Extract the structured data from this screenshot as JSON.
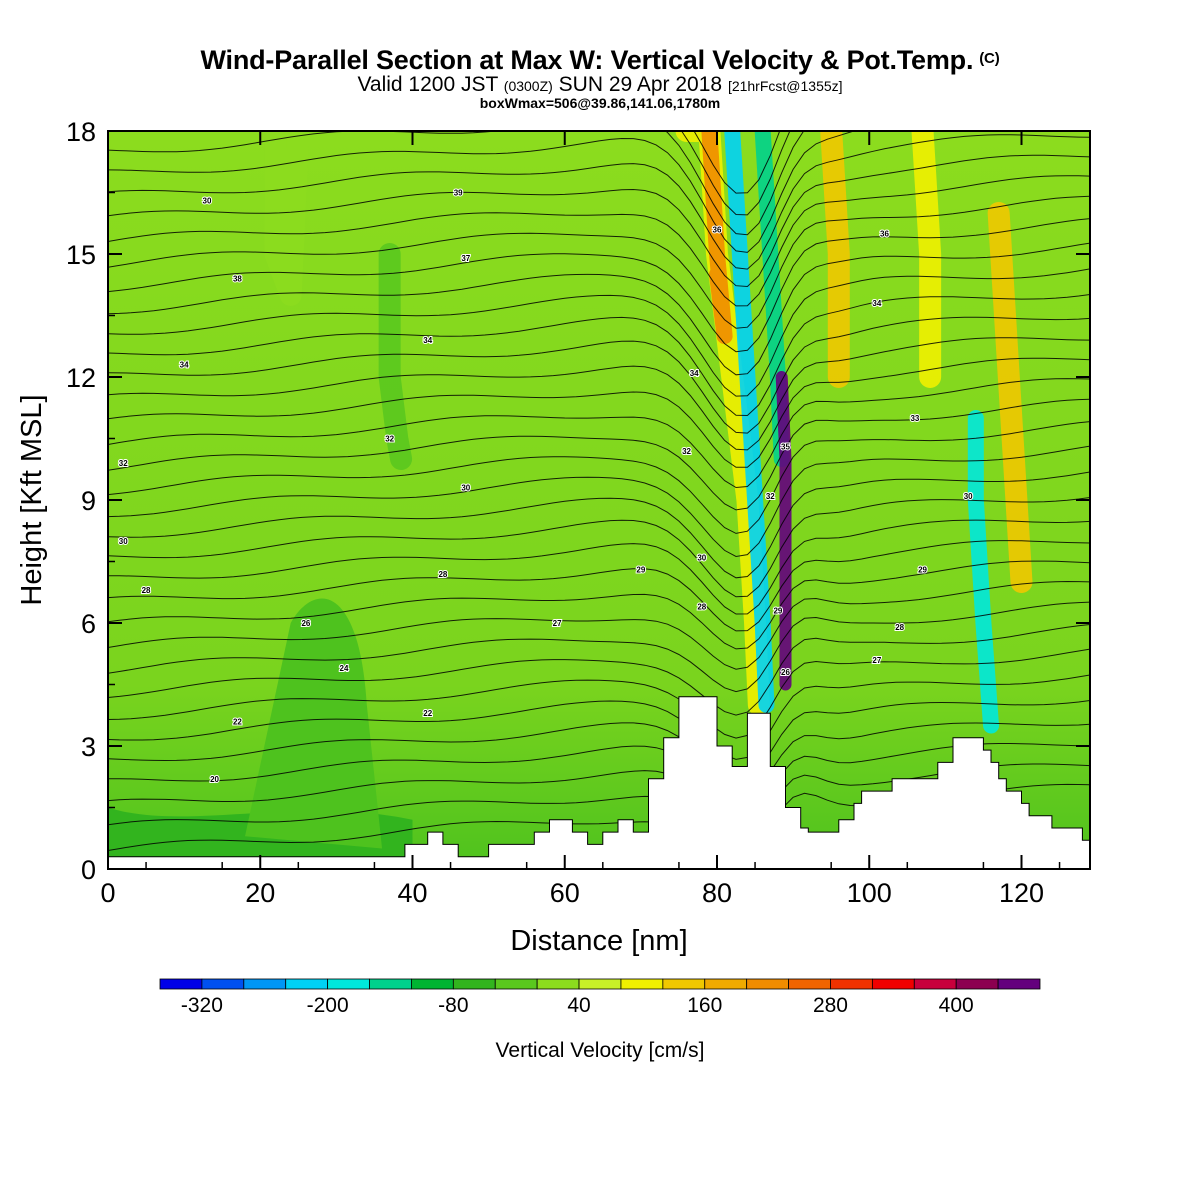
{
  "header": {
    "title": "Wind-Parallel Section at Max W: Vertical Velocity & Pot.Temp.",
    "copyright": "(C)",
    "valid_prefix": "Valid 1200 JST",
    "valid_utc": "(0300Z)",
    "valid_date": "SUN 29 Apr 2018",
    "forecast": "[21hrFcst@1355z]",
    "box_info": "boxWmax=506@39.86,141.06,1780m"
  },
  "chart_data": {
    "type": "heatmap",
    "xlabel": "Distance [nm]",
    "ylabel": "Height [Kft MSL]",
    "xlim": [
      0,
      129
    ],
    "ylim": [
      0,
      18
    ],
    "x_ticks": [
      0,
      20,
      40,
      60,
      80,
      100,
      120
    ],
    "y_ticks": [
      0,
      3,
      6,
      9,
      12,
      15,
      18
    ],
    "terrain_profile": [
      [
        0,
        0.3
      ],
      [
        39,
        0.3
      ],
      [
        39,
        0.6
      ],
      [
        42,
        0.6
      ],
      [
        42,
        0.9
      ],
      [
        44,
        0.9
      ],
      [
        44,
        0.6
      ],
      [
        46,
        0.6
      ],
      [
        46,
        0.3
      ],
      [
        50,
        0.3
      ],
      [
        50,
        0.6
      ],
      [
        56,
        0.6
      ],
      [
        56,
        0.9
      ],
      [
        58,
        0.9
      ],
      [
        58,
        1.2
      ],
      [
        61,
        1.2
      ],
      [
        61,
        0.9
      ],
      [
        63,
        0.9
      ],
      [
        63,
        0.6
      ],
      [
        65,
        0.6
      ],
      [
        65,
        0.9
      ],
      [
        67,
        0.9
      ],
      [
        67,
        1.2
      ],
      [
        69,
        1.2
      ],
      [
        69,
        0.9
      ],
      [
        71,
        0.9
      ],
      [
        71,
        2.2
      ],
      [
        73,
        2.2
      ],
      [
        73,
        3.2
      ],
      [
        75,
        3.2
      ],
      [
        75,
        4.2
      ],
      [
        80,
        4.2
      ],
      [
        80,
        3.0
      ],
      [
        82,
        3.0
      ],
      [
        82,
        2.5
      ],
      [
        84,
        2.5
      ],
      [
        84,
        3.8
      ],
      [
        87,
        3.8
      ],
      [
        87,
        2.5
      ],
      [
        89,
        2.5
      ],
      [
        89,
        1.5
      ],
      [
        91,
        1.5
      ],
      [
        91,
        1.0
      ],
      [
        92,
        1.0
      ],
      [
        92,
        0.9
      ],
      [
        96,
        0.9
      ],
      [
        96,
        1.2
      ],
      [
        98,
        1.2
      ],
      [
        98,
        1.6
      ],
      [
        99,
        1.6
      ],
      [
        99,
        1.9
      ],
      [
        103,
        1.9
      ],
      [
        103,
        2.2
      ],
      [
        109,
        2.2
      ],
      [
        109,
        2.6
      ],
      [
        111,
        2.6
      ],
      [
        111,
        3.2
      ],
      [
        115,
        3.2
      ],
      [
        115,
        2.9
      ],
      [
        116,
        2.9
      ],
      [
        116,
        2.6
      ],
      [
        117,
        2.6
      ],
      [
        117,
        2.2
      ],
      [
        118,
        2.2
      ],
      [
        118,
        1.9
      ],
      [
        120,
        1.9
      ],
      [
        120,
        1.6
      ],
      [
        121,
        1.6
      ],
      [
        121,
        1.3
      ],
      [
        124,
        1.3
      ],
      [
        124,
        1.0
      ],
      [
        128,
        1.0
      ],
      [
        128,
        0.7
      ],
      [
        129,
        0.7
      ]
    ],
    "velocity_ridges": [
      {
        "value": 20,
        "points": [
          [
            22,
            18
          ],
          [
            22,
            15
          ],
          [
            24,
            14
          ],
          [
            25,
            18
          ]
        ]
      },
      {
        "value": -40,
        "points": [
          [
            37,
            15
          ],
          [
            37,
            12
          ],
          [
            38,
            10.5
          ],
          [
            38.5,
            10
          ]
        ]
      },
      {
        "value": 80,
        "points": [
          [
            76,
            18
          ],
          [
            79,
            18
          ],
          [
            80,
            15
          ],
          [
            82,
            12
          ],
          [
            84,
            9
          ],
          [
            85,
            6
          ],
          [
            85.5,
            4
          ]
        ]
      },
      {
        "value": 200,
        "points": [
          [
            79,
            18
          ],
          [
            80,
            15
          ],
          [
            81,
            13
          ],
          [
            80,
            14.5
          ]
        ]
      },
      {
        "value": -240,
        "points": [
          [
            82,
            18
          ],
          [
            83,
            15
          ],
          [
            84,
            12
          ],
          [
            85,
            9
          ],
          [
            86,
            6
          ],
          [
            86.5,
            4
          ]
        ]
      },
      {
        "value": -160,
        "points": [
          [
            86,
            18
          ],
          [
            87,
            15
          ],
          [
            88,
            12
          ],
          [
            88.5,
            10
          ]
        ]
      },
      {
        "value": 480,
        "points": [
          [
            88.5,
            12
          ],
          [
            89,
            10
          ],
          [
            89,
            8
          ],
          [
            89,
            6
          ],
          [
            89,
            4.5
          ]
        ]
      },
      {
        "value": 120,
        "points": [
          [
            95,
            18
          ],
          [
            96,
            15
          ],
          [
            96,
            12
          ]
        ]
      },
      {
        "value": 80,
        "points": [
          [
            107,
            18
          ],
          [
            108,
            15
          ],
          [
            108,
            12
          ]
        ]
      },
      {
        "value": -200,
        "points": [
          [
            114,
            11
          ],
          [
            114,
            9
          ],
          [
            115,
            6
          ],
          [
            116,
            3.5
          ]
        ]
      },
      {
        "value": 120,
        "points": [
          [
            117,
            16
          ],
          [
            118,
            13
          ],
          [
            119,
            10
          ],
          [
            120,
            7
          ]
        ]
      }
    ],
    "isotherm_labels": [
      {
        "x": 13,
        "y": 16.3,
        "text": "30"
      },
      {
        "x": 17,
        "y": 14.4,
        "text": "38"
      },
      {
        "x": 10,
        "y": 12.3,
        "text": "34"
      },
      {
        "x": 2,
        "y": 9.9,
        "text": "32"
      },
      {
        "x": 2,
        "y": 8.0,
        "text": "30"
      },
      {
        "x": 5,
        "y": 6.8,
        "text": "28"
      },
      {
        "x": 26,
        "y": 6.0,
        "text": "26"
      },
      {
        "x": 31,
        "y": 4.9,
        "text": "24"
      },
      {
        "x": 17,
        "y": 3.6,
        "text": "22"
      },
      {
        "x": 14,
        "y": 2.2,
        "text": "20"
      },
      {
        "x": 46,
        "y": 16.5,
        "text": "39"
      },
      {
        "x": 47,
        "y": 14.9,
        "text": "37"
      },
      {
        "x": 42,
        "y": 12.9,
        "text": "34"
      },
      {
        "x": 37,
        "y": 10.5,
        "text": "32"
      },
      {
        "x": 47,
        "y": 9.3,
        "text": "30"
      },
      {
        "x": 44,
        "y": 7.2,
        "text": "28"
      },
      {
        "x": 42,
        "y": 3.8,
        "text": "22"
      },
      {
        "x": 59,
        "y": 6.0,
        "text": "27"
      },
      {
        "x": 70,
        "y": 7.3,
        "text": "29"
      },
      {
        "x": 80,
        "y": 15.6,
        "text": "36"
      },
      {
        "x": 77,
        "y": 12.1,
        "text": "34"
      },
      {
        "x": 76,
        "y": 10.2,
        "text": "32"
      },
      {
        "x": 78,
        "y": 7.6,
        "text": "30"
      },
      {
        "x": 78,
        "y": 6.4,
        "text": "28"
      },
      {
        "x": 89,
        "y": 10.3,
        "text": "35"
      },
      {
        "x": 87,
        "y": 9.1,
        "text": "32"
      },
      {
        "x": 88,
        "y": 6.3,
        "text": "29"
      },
      {
        "x": 89,
        "y": 4.8,
        "text": "26"
      },
      {
        "x": 102,
        "y": 15.5,
        "text": "36"
      },
      {
        "x": 101,
        "y": 13.8,
        "text": "34"
      },
      {
        "x": 106,
        "y": 11.0,
        "text": "33"
      },
      {
        "x": 113,
        "y": 9.1,
        "text": "30"
      },
      {
        "x": 107,
        "y": 7.3,
        "text": "29"
      },
      {
        "x": 104,
        "y": 5.9,
        "text": "28"
      },
      {
        "x": 101,
        "y": 5.1,
        "text": "27"
      }
    ],
    "legend": {
      "label": "Vertical Velocity [cm/s]",
      "placement": "bottom",
      "bins": [
        -360,
        -320,
        -280,
        -240,
        -200,
        -160,
        -120,
        -80,
        -40,
        0,
        40,
        80,
        120,
        160,
        200,
        240,
        280,
        320,
        360,
        400,
        440,
        480
      ],
      "colors": [
        "#0000e8",
        "#0050f0",
        "#0096f5",
        "#00d2f5",
        "#00e8dc",
        "#00d28c",
        "#00b432",
        "#32b41e",
        "#5ac81e",
        "#8cdc1e",
        "#c8f028",
        "#f0f000",
        "#f0c800",
        "#f0aa00",
        "#f08c00",
        "#f06400",
        "#f03200",
        "#f00000",
        "#c8003c",
        "#8c0050",
        "#64007d"
      ],
      "tick_values": [
        -320,
        -200,
        -80,
        40,
        160,
        280,
        400
      ],
      "tick_labels": [
        "-320",
        "-200",
        "-80",
        "40",
        "160",
        "280",
        "400"
      ]
    }
  }
}
